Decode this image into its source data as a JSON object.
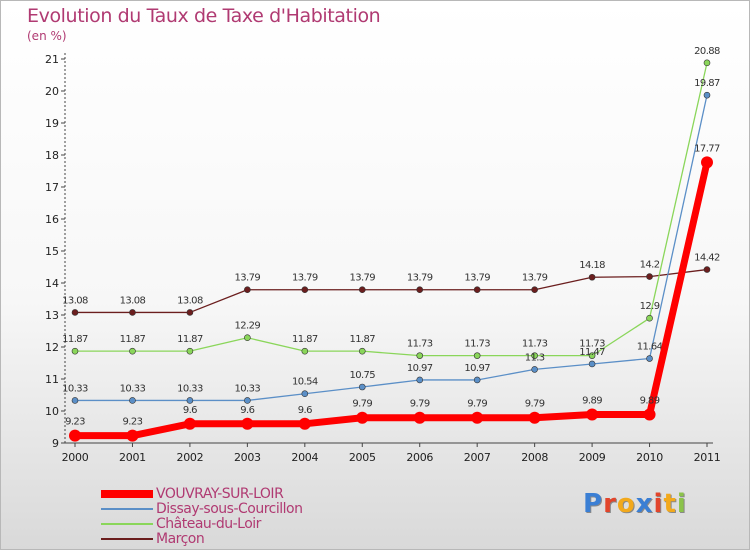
{
  "chart_data": {
    "type": "line",
    "title": "Evolution du Taux de Taxe d'Habitation",
    "subtitle": "(en %)",
    "x": [
      "2000",
      "2001",
      "2002",
      "2003",
      "2004",
      "2005",
      "2006",
      "2007",
      "2008",
      "2009",
      "2010",
      "2011"
    ],
    "ylim": [
      9,
      21
    ],
    "yticks": [
      "9",
      "10",
      "11",
      "12",
      "13",
      "14",
      "15",
      "16",
      "17",
      "18",
      "19",
      "20",
      "21"
    ],
    "grid": false,
    "legend_position": "bottom-left",
    "series": [
      {
        "name": "Marçon",
        "color": "#6b1e1e",
        "values": [
          13.08,
          13.08,
          13.08,
          13.79,
          13.79,
          13.79,
          13.79,
          13.79,
          13.79,
          14.18,
          14.2,
          14.42
        ],
        "labels": [
          "13.08",
          "13.08",
          "13.08",
          "13.79",
          "13.79",
          "13.79",
          "13.79",
          "13.79",
          "13.79",
          "14.18",
          "14.2",
          "14.42"
        ]
      },
      {
        "name": "Château-du-Loir",
        "color": "#8ad65a",
        "values": [
          11.87,
          11.87,
          11.87,
          12.29,
          11.87,
          11.87,
          11.73,
          11.73,
          11.73,
          11.73,
          12.9,
          20.88
        ],
        "labels": [
          "11.87",
          "11.87",
          "11.87",
          "12.29",
          "11.87",
          "11.87",
          "11.73",
          "11.73",
          "11.73",
          "11.73",
          "12.9",
          "20.88"
        ]
      },
      {
        "name": "Dissay-sous-Courcillon",
        "color": "#5b8fc7",
        "values": [
          10.33,
          10.33,
          10.33,
          10.33,
          10.54,
          10.75,
          10.97,
          10.97,
          11.3,
          11.47,
          11.64,
          19.87
        ],
        "labels": [
          "10.33",
          "10.33",
          "10.33",
          "10.33",
          "10.54",
          "10.75",
          "10.97",
          "10.97",
          "11.3",
          "11.47",
          "11.64",
          "19.87"
        ]
      },
      {
        "name": "VOUVRAY-SUR-LOIR",
        "color": "#ff0000",
        "values": [
          9.23,
          9.23,
          9.6,
          9.6,
          9.6,
          9.79,
          9.79,
          9.79,
          9.79,
          9.89,
          9.89,
          17.77
        ],
        "labels": [
          "9.23",
          "9.23",
          "9.6",
          "9.6",
          "9.6",
          "9.79",
          "9.79",
          "9.79",
          "9.79",
          "9.89",
          "9.89",
          "17.77"
        ]
      }
    ]
  },
  "legend": [
    {
      "label": "VOUVRAY-SUR-LOIR",
      "color": "#ff0000"
    },
    {
      "label": "Dissay-sous-Courcillon",
      "color": "#5b8fc7"
    },
    {
      "label": "Château-du-Loir",
      "color": "#8ad65a"
    },
    {
      "label": "Marçon",
      "color": "#6b1e1e"
    }
  ],
  "logo": {
    "letters": [
      "P",
      "r",
      "o",
      "x",
      "i",
      "t",
      "i"
    ],
    "colors": [
      "#3b7fd4",
      "#e2452b",
      "#f2a91c",
      "#3b7fd4",
      "#e2452b",
      "#f2a91c",
      "#8bc34a"
    ]
  }
}
